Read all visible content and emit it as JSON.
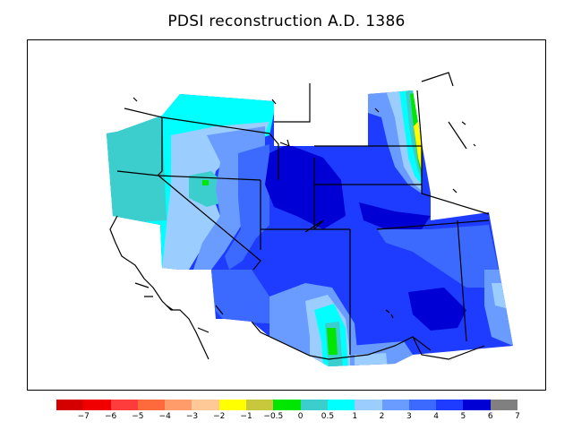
{
  "title": "PDSI reconstruction A.D. 1386",
  "legend": {
    "colors": [
      "#d40000",
      "#f00000",
      "#ff3c3c",
      "#ff6a3c",
      "#ff9c6a",
      "#ffc896",
      "#ffff00",
      "#c8c83c",
      "#00e600",
      "#3ccdcd",
      "#00ffff",
      "#9ccdff",
      "#6a9cff",
      "#3c6aff",
      "#1e3cff",
      "#0000d4",
      "#808080"
    ],
    "labels": [
      "−7",
      "−6",
      "−5",
      "−4",
      "−3",
      "−2",
      "−1",
      "−0.5",
      "0",
      "0.5",
      "1",
      "2",
      "3",
      "4",
      "5",
      "6",
      "7"
    ]
  },
  "map": {
    "region": "Western United States",
    "variable": "PDSI",
    "year": "A.D. 1386",
    "region_colors": {
      "dominant": "#1e3cff",
      "wettest": "#0000d4",
      "moderate": "#3c6aff",
      "mild": "#6a9cff",
      "light": "#9ccdff",
      "near_normal": "#00ffff",
      "slight_wet": "#3ccdcd",
      "normal": "#00e600",
      "dry_edge": "#ffff00"
    }
  }
}
